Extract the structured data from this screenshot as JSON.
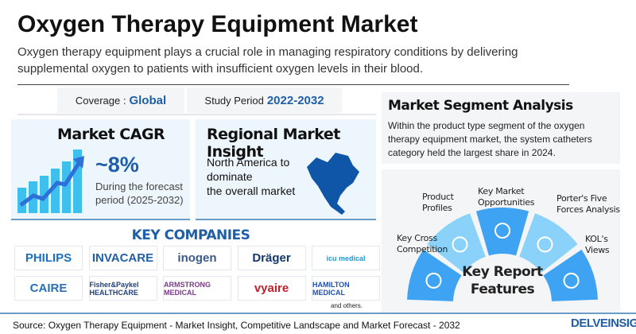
{
  "title": "Oxygen Therapy Equipment Market",
  "description": "Oxygen therapy equipment plays a crucial role in managing respiratory conditions by delivering supplemental oxygen to patients with insufficient oxygen levels in their blood.",
  "coverage": {
    "label": "Coverage :",
    "value": "Global"
  },
  "study_period": {
    "label": "Study Period",
    "value": "2022-2032"
  },
  "cagr": {
    "title": "Market CAGR",
    "value": "~8%",
    "note_line1": "During the forecast",
    "note_line2": "period (2025-2032)",
    "icon": "bar-chart-growth-icon"
  },
  "regional": {
    "title": "Regional Market Insight",
    "line1": "North America to",
    "line2": "dominate",
    "line3": "the overall market",
    "icon": "north-america-map-icon"
  },
  "segment": {
    "title": "Market Segment Analysis",
    "text": "Within the product type segment of the oxygen therapy equipment market, the system catheters category held the largest share in 2024."
  },
  "features": {
    "center_line1": "Key Report",
    "center_line2": "Features",
    "items": [
      "Key Cross Competition",
      "Product Profiles",
      "Key Market Opportunities",
      "Porter's Five Forces Analysis",
      "KOL's Views"
    ],
    "colors": [
      "#3ea3f2",
      "#8ad2fa"
    ]
  },
  "companies": {
    "title": "KEY COMPANIES",
    "logos": [
      "PHILIPS",
      "INVACARE",
      "inogen",
      "Dräger",
      "icu medical",
      "CAIRE",
      "Fisher&Paykel HEALTHCARE",
      "ARMSTRONG MEDICAL",
      "vyaire",
      "HAMILTON MEDICAL"
    ],
    "others": "and others."
  },
  "source": "Source: Oxygen Therapy Equipment - Market Insight, Competitive Landscape and Market Forecast - 2032",
  "brand": "DELVEINSIGHT"
}
